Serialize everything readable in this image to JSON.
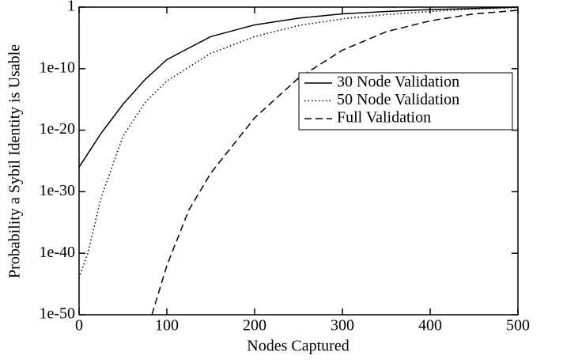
{
  "chart_data": {
    "type": "line",
    "x_label": "Nodes Captured",
    "y_label": "Probability a Sybil Identity is Usable",
    "xlim": [
      0,
      500
    ],
    "xticks": [
      0,
      100,
      200,
      300,
      400,
      500
    ],
    "ylim": [
      1e-50,
      1
    ],
    "log_y": true,
    "yticks": [
      {
        "value": 1e-50,
        "label": "1e-50"
      },
      {
        "value": 1e-40,
        "label": "1e-40"
      },
      {
        "value": 1e-30,
        "label": "1e-30"
      },
      {
        "value": 1e-20,
        "label": "1e-20"
      },
      {
        "value": 1e-10,
        "label": "1e-10"
      },
      1
    ],
    "legend": "upper right",
    "series": [
      {
        "name": "30 Node Validation",
        "color": "#000000",
        "dash": "solid",
        "x": [
          0,
          25,
          50,
          75,
          100,
          150,
          200,
          250,
          300,
          350,
          400,
          450,
          500
        ],
        "values": [
          1e-26,
          3e-21,
          1.6e-16,
          1.6e-12,
          3e-09,
          1.6e-05,
          0.0013,
          0.016,
          0.08,
          0.2,
          0.4,
          0.6,
          1
        ]
      },
      {
        "name": "50 Node Validation",
        "color": "#000000",
        "dash": "dotted",
        "x": [
          0,
          10,
          25,
          50,
          75,
          100,
          150,
          200,
          250,
          300,
          350,
          400,
          450,
          500
        ],
        "values": [
          1e-44,
          1e-40,
          1e-31,
          1e-21,
          3e-16,
          1e-12,
          3e-08,
          1.6e-05,
          0.001,
          0.0126,
          0.063,
          0.2,
          0.5,
          0.8
        ]
      },
      {
        "name": "Full Validation",
        "color": "#000000",
        "dash": "dashed",
        "x": [
          83,
          100,
          125,
          150,
          200,
          250,
          300,
          350,
          400,
          450,
          500
        ],
        "values": [
          1e-50,
          1e-42,
          1e-33,
          1e-27,
          1e-18,
          3e-12,
          1e-07,
          0.0001,
          0.006,
          0.08,
          0.3
        ]
      }
    ]
  }
}
